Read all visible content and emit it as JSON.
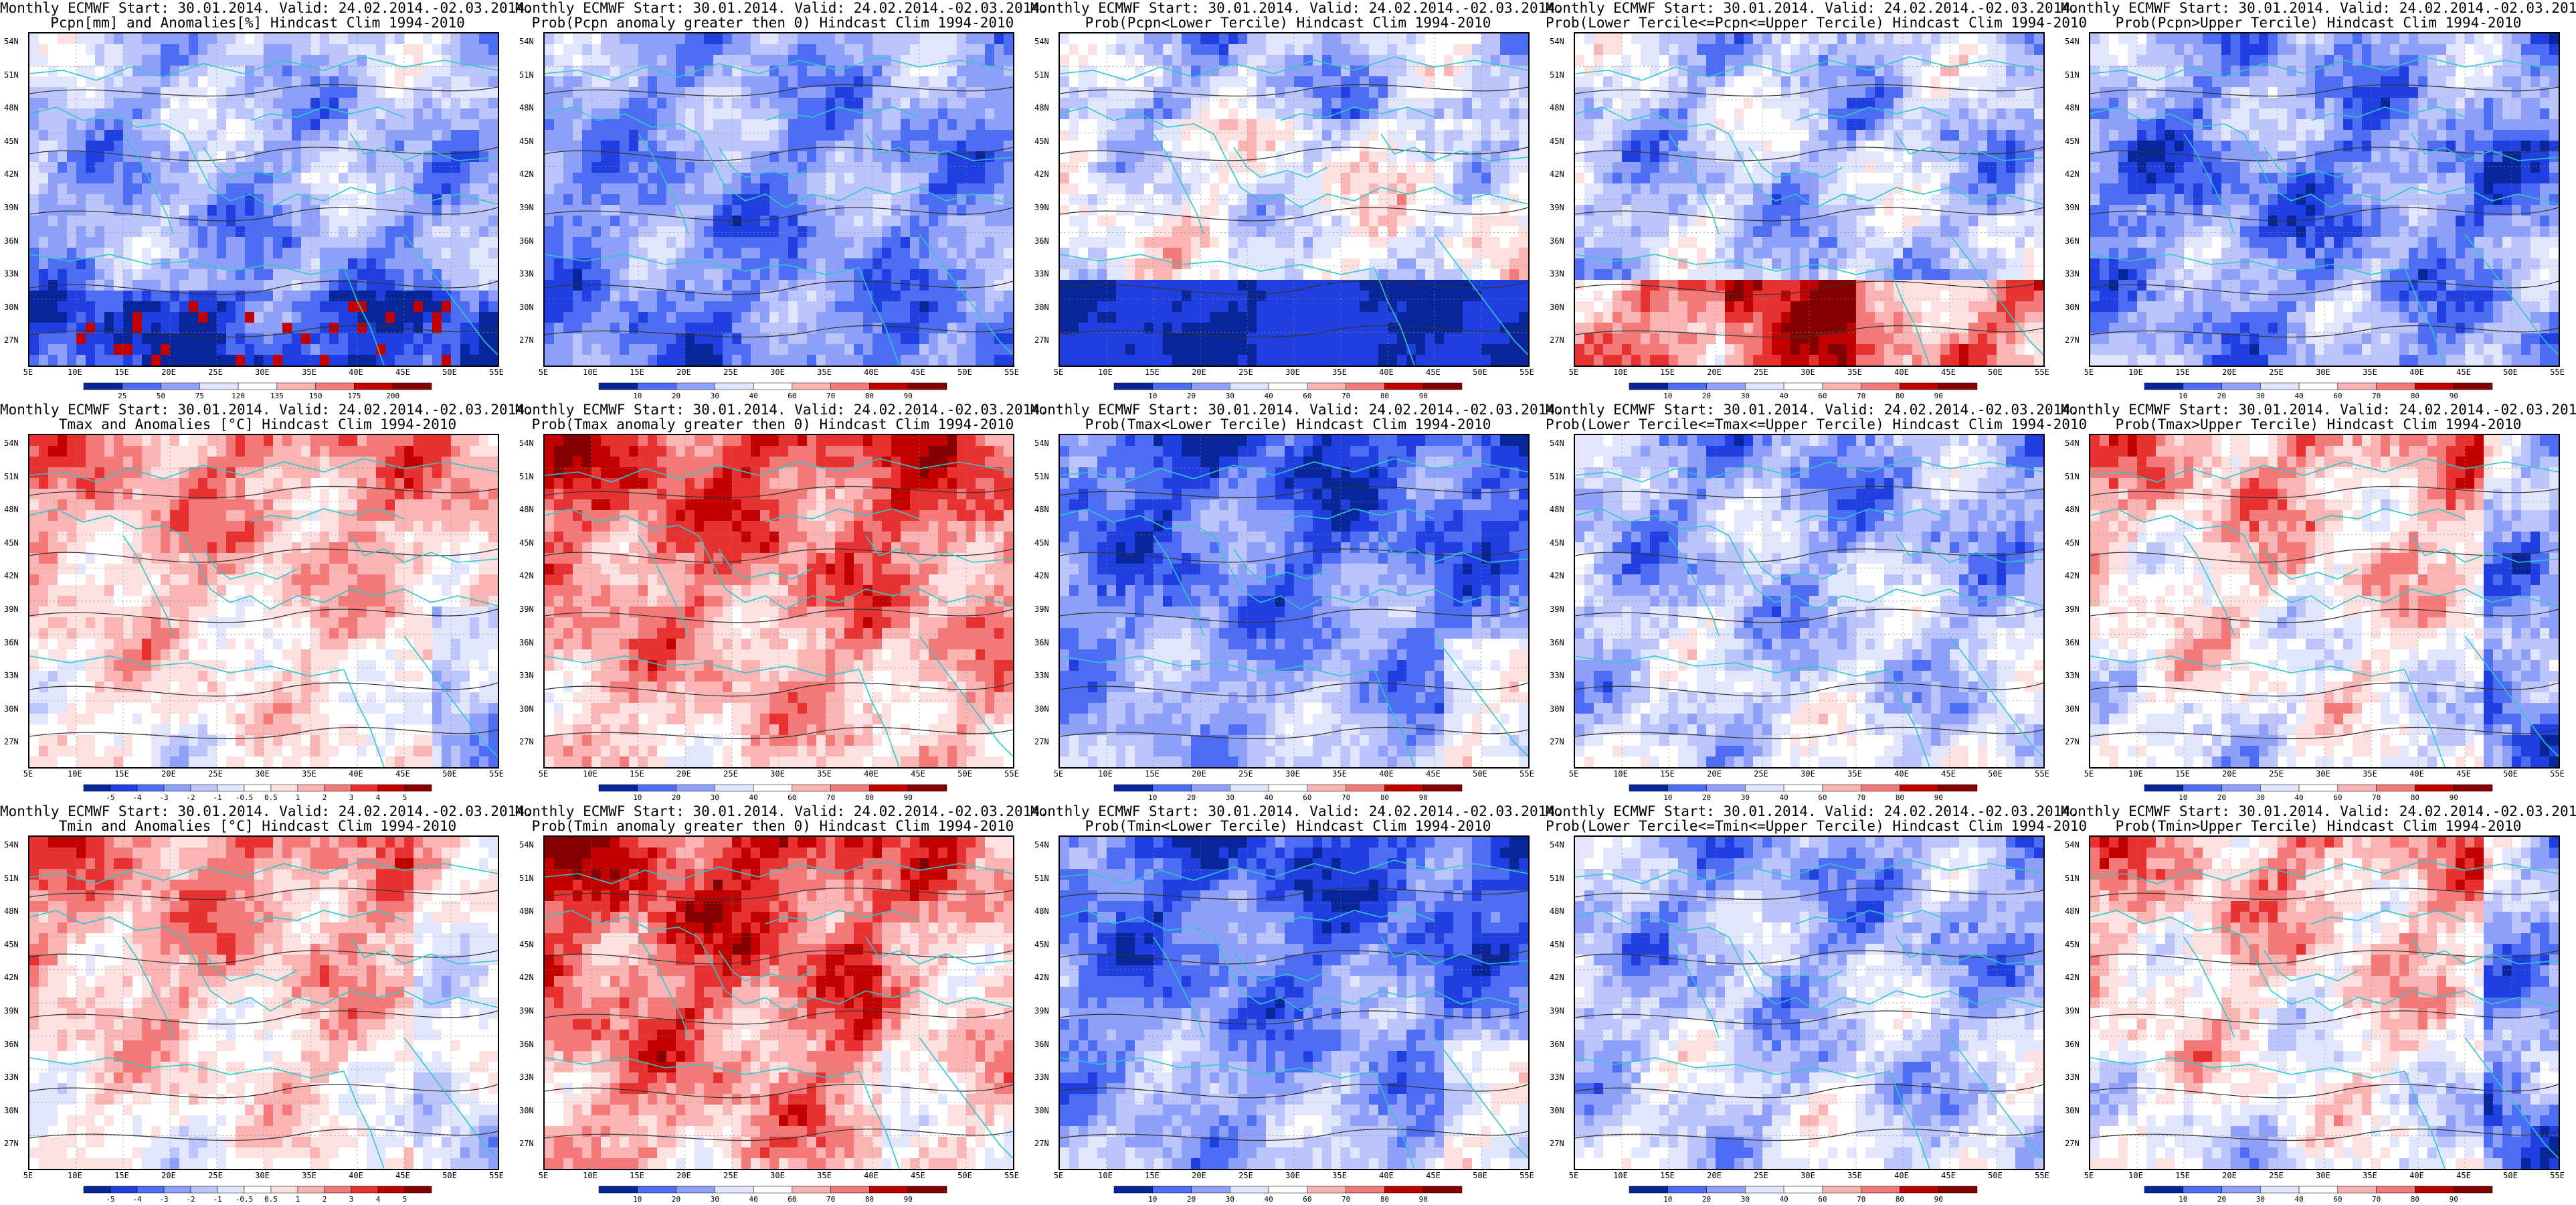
{
  "header_line": "Monthly ECMWF Start: 30.01.2014. Valid: 24.02.2014.-02.03.2014.",
  "lat_labels": [
    "54N",
    "51N",
    "48N",
    "45N",
    "42N",
    "39N",
    "36N",
    "33N",
    "30N",
    "27N"
  ],
  "lon_labels": [
    "5E",
    "10E",
    "15E",
    "20E",
    "25E",
    "30E",
    "35E",
    "40E",
    "45E",
    "50E",
    "55E"
  ],
  "colors": {
    "coastline": "#2ec8c8",
    "contour": "#333333",
    "anom_scale": [
      "#08269a",
      "#1f3fe0",
      "#4d6df5",
      "#8ea0fa",
      "#bcc5fb",
      "#e2e6fd",
      "#ffffff",
      "#fde0e0",
      "#fbb4b4",
      "#f47a7a",
      "#e83232",
      "#c20000",
      "#850000"
    ]
  },
  "colorbars": {
    "pcpn_anom": [
      "25",
      "50",
      "75",
      "120",
      "135",
      "150",
      "175",
      "200"
    ],
    "prob": [
      "10",
      "20",
      "30",
      "40",
      "60",
      "70",
      "80",
      "90"
    ],
    "temp_anom": [
      "-5",
      "-4",
      "-3",
      "-2",
      "-1",
      "-0.5",
      "0.5",
      "1",
      "2",
      "3",
      "4",
      "5"
    ]
  },
  "panels": [
    {
      "title": "Pcpn[mm] and Anomalies[%] Hindcast Clim 1994-2010",
      "cbar": "pcpn_anom",
      "pattern": "pcpn"
    },
    {
      "title": "Prob(Pcpn anomaly greater then 0) Hindcast Clim 1994-2010",
      "cbar": "prob",
      "pattern": "pcpn_prob"
    },
    {
      "title": "Prob(Pcpn<Lower Tercile) Hindcast Clim 1994-2010",
      "cbar": "prob",
      "pattern": "pcpn_lower"
    },
    {
      "title": "Prob(Lower Tercile<=Pcpn<=Upper Tercile) Hindcast Clim 1994-2010",
      "cbar": "prob",
      "pattern": "pcpn_mid"
    },
    {
      "title": "Prob(Pcpn>Upper Tercile) Hindcast Clim 1994-2010",
      "cbar": "prob",
      "pattern": "pcpn_upper"
    },
    {
      "title": "Tmax and Anomalies [°C] Hindcast Clim 1994-2010",
      "cbar": "temp_anom",
      "pattern": "warm"
    },
    {
      "title": "Prob(Tmax anomaly greater then 0) Hindcast Clim 1994-2010",
      "cbar": "prob",
      "pattern": "warm_strong"
    },
    {
      "title": "Prob(Tmax<Lower Tercile) Hindcast Clim 1994-2010",
      "cbar": "prob",
      "pattern": "cold_strong"
    },
    {
      "title": "Prob(Lower Tercile<=Tmax<=Upper Tercile) Hindcast Clim 1994-2010",
      "cbar": "prob",
      "pattern": "mid_blue"
    },
    {
      "title": "Prob(Tmax>Upper Tercile) Hindcast Clim 1994-2010",
      "cbar": "prob",
      "pattern": "warm_mix"
    },
    {
      "title": "Tmin and Anomalies [°C] Hindcast Clim 1994-2010",
      "cbar": "temp_anom",
      "pattern": "warm_n"
    },
    {
      "title": "Prob(Tmin anomaly greater then 0) Hindcast Clim 1994-2010",
      "cbar": "prob",
      "pattern": "warm_strong_n"
    },
    {
      "title": "Prob(Tmin<Lower Tercile) Hindcast Clim 1994-2010",
      "cbar": "prob",
      "pattern": "cold_strong"
    },
    {
      "title": "Prob(Lower Tercile<=Tmin<=Upper Tercile) Hindcast Clim 1994-2010",
      "cbar": "prob",
      "pattern": "mid_blue"
    },
    {
      "title": "Prob(Tmin>Upper Tercile) Hindcast Clim 1994-2010",
      "cbar": "prob",
      "pattern": "warm_mix"
    }
  ]
}
